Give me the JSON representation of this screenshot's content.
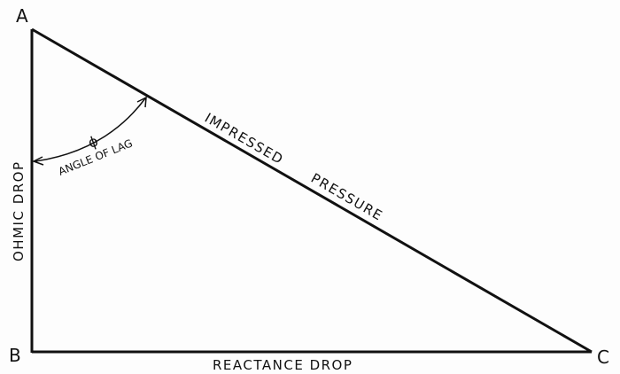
{
  "vertices": {
    "a": "A",
    "b": "B",
    "c": "C"
  },
  "labels": {
    "ohmic": "OHMIC DROP",
    "reactance": "REACTANCE DROP",
    "impressed": "IMPRESSED",
    "pressure": "PRESSURE",
    "phi": "ϕ",
    "angle": "ANGLE OF LAG"
  },
  "colors": {
    "ink": "#111111"
  }
}
